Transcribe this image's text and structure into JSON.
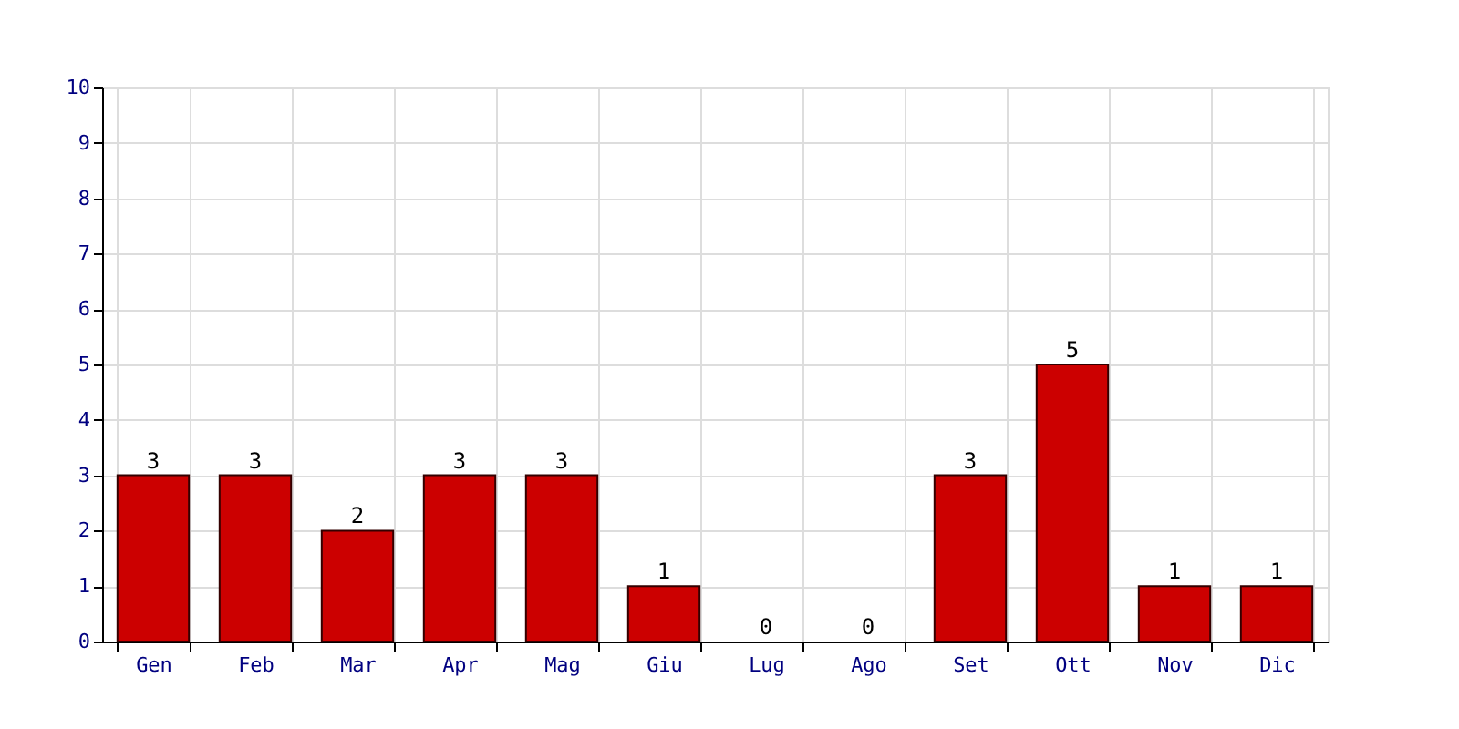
{
  "chart_data": {
    "type": "bar",
    "categories": [
      "Gen",
      "Feb",
      "Mar",
      "Apr",
      "Mag",
      "Giu",
      "Lug",
      "Ago",
      "Set",
      "Ott",
      "Nov",
      "Dic"
    ],
    "values": [
      3,
      3,
      2,
      3,
      3,
      1,
      0,
      0,
      3,
      5,
      1,
      1
    ],
    "color": "#cc0000",
    "ylim": [
      0,
      10
    ],
    "yticks": [
      0,
      1,
      2,
      3,
      4,
      5,
      6,
      7,
      8,
      9,
      10
    ],
    "grid": true,
    "data_labels": true
  }
}
